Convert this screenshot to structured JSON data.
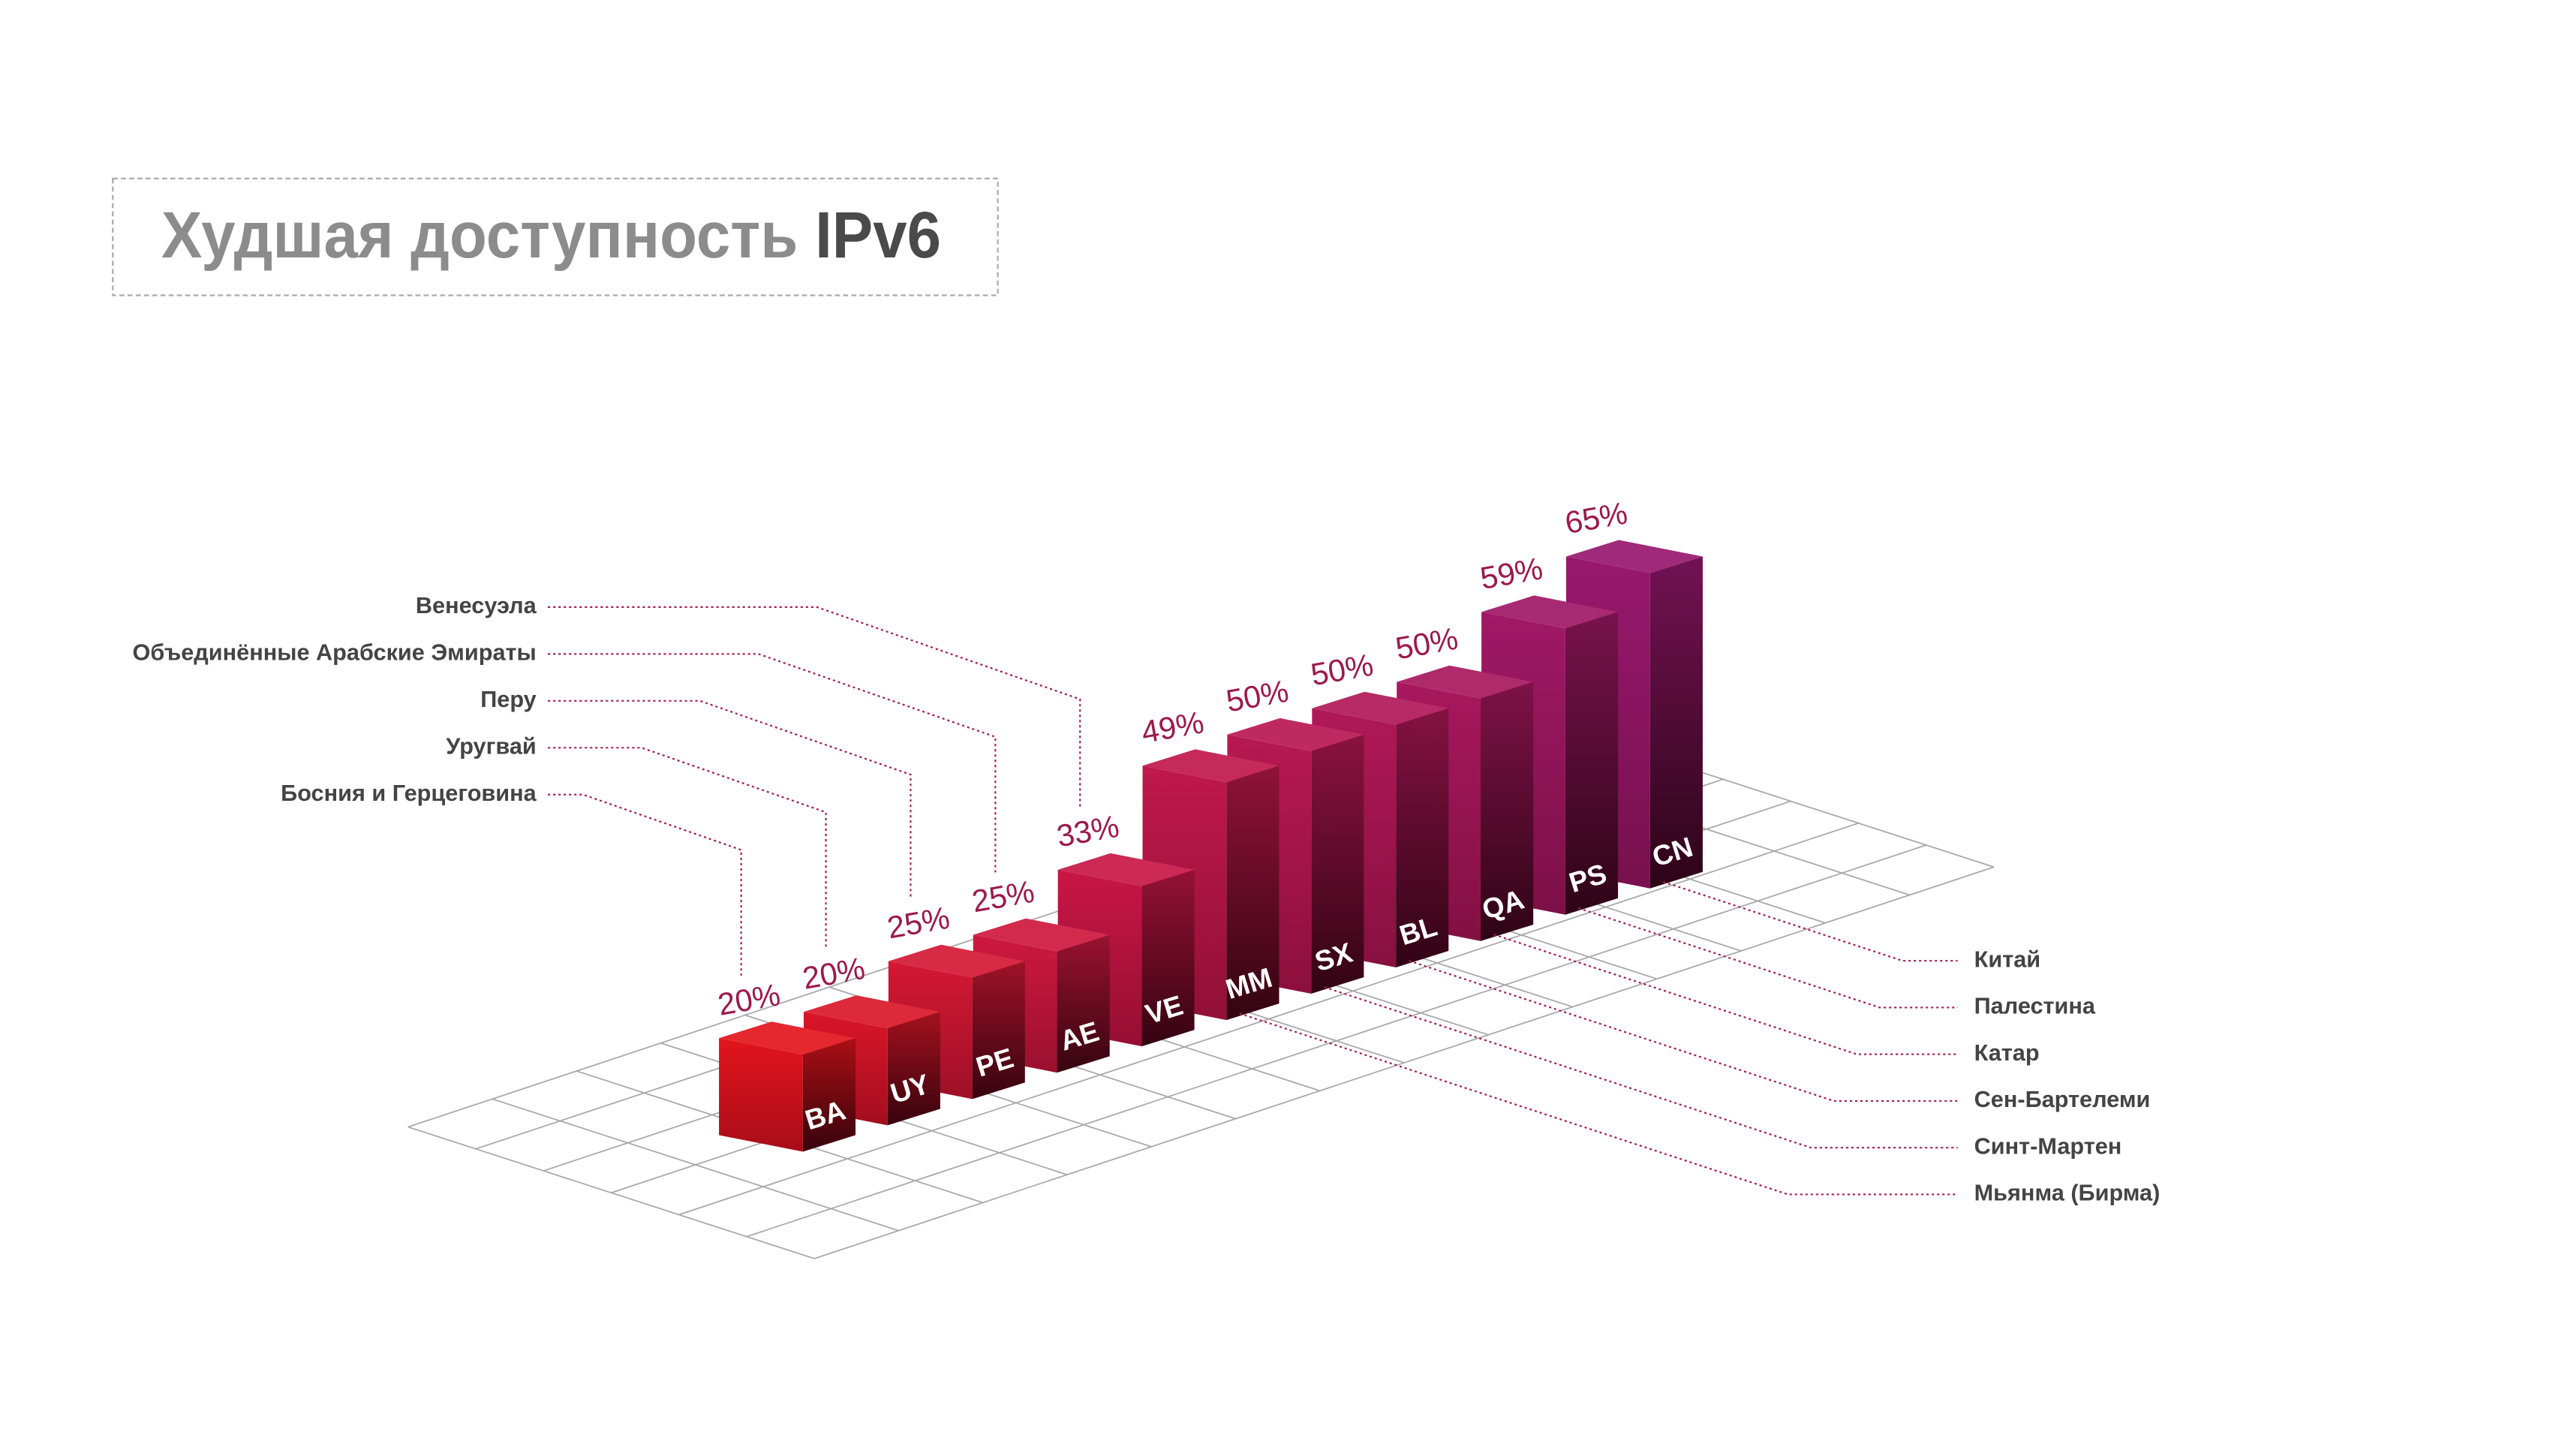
{
  "chart_data": {
    "type": "bar",
    "title": "Худшая доступность",
    "title_emphasis": "IPv6",
    "categories": [
      "BA",
      "UY",
      "PE",
      "AE",
      "VE",
      "MM",
      "SX",
      "BL",
      "QA",
      "PS",
      "CN"
    ],
    "names": [
      "Босния и Герцеговина",
      "Уругвай",
      "Перу",
      "Объединённые Арабские Эмираты",
      "Венесуэла",
      "Мьянма (Бирма)",
      "Синт-Мартен",
      "Сен-Бартелеми",
      "Катар",
      "Палестина",
      "Китай"
    ],
    "values": [
      20,
      20,
      25,
      25,
      33,
      49,
      50,
      50,
      50,
      59,
      65
    ],
    "value_labels": [
      "20%",
      "20%",
      "25%",
      "25%",
      "33%",
      "49%",
      "50%",
      "50%",
      "50%",
      "59%",
      "65%"
    ],
    "colors": [
      "#e3141c",
      "#da1628",
      "#d41834",
      "#ce183e",
      "#c81646",
      "#c0184c",
      "#b81852",
      "#b01858",
      "#a8185e",
      "#a01866",
      "#98186e"
    ],
    "value_label_color": "#9b1a4b",
    "grid": true
  }
}
